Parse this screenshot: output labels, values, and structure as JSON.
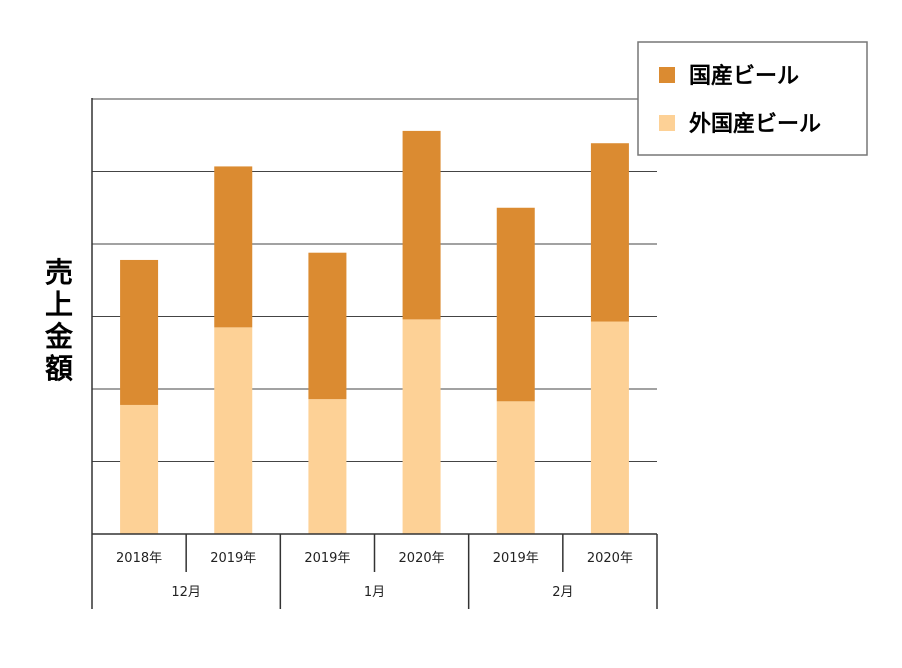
{
  "chart_data": {
    "type": "bar",
    "stacked": true,
    "title": "",
    "xlabel": "",
    "ylabel": "売上金額",
    "y_tick_labels_shown": false,
    "ylim": [
      0,
      6
    ],
    "grid": true,
    "legend_position": "top-right",
    "categories": [
      "2018年",
      "2019年",
      "2019年",
      "2020年",
      "2019年",
      "2020年"
    ],
    "groups": [
      {
        "label": "12月",
        "span": 2
      },
      {
        "label": "1月",
        "span": 2
      },
      {
        "label": "2月",
        "span": 2
      }
    ],
    "series": [
      {
        "name": "外国産ビール",
        "color": "#FDD196",
        "values": [
          1.78,
          2.85,
          1.86,
          2.96,
          1.83,
          2.93
        ]
      },
      {
        "name": "国産ビール",
        "color": "#DB8B31",
        "values": [
          2.0,
          2.22,
          2.02,
          2.6,
          2.67,
          2.46
        ]
      }
    ]
  }
}
